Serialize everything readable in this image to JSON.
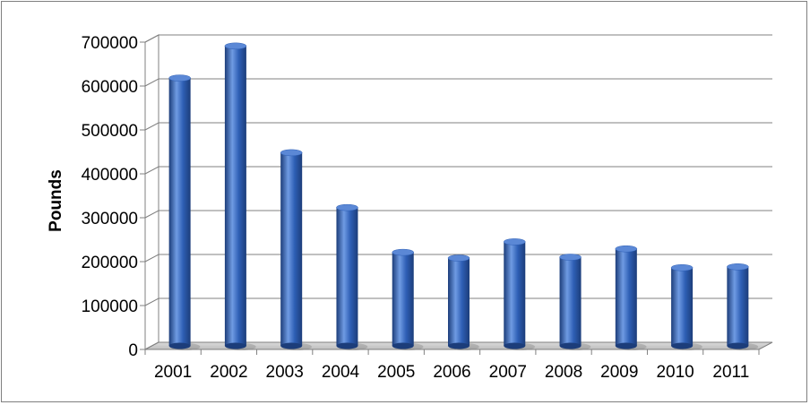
{
  "chart_data": {
    "type": "bar",
    "title": "",
    "xlabel": "",
    "ylabel": "Pounds",
    "categories": [
      "2001",
      "2002",
      "2003",
      "2004",
      "2005",
      "2006",
      "2007",
      "2008",
      "2009",
      "2010",
      "2011"
    ],
    "series": [
      {
        "values": [
          610000,
          683000,
          440000,
          315000,
          213000,
          200000,
          237000,
          202000,
          221000,
          178000,
          180000
        ]
      }
    ],
    "ylim": [
      0,
      700000
    ],
    "yticks": [
      "0",
      "100000",
      "200000",
      "300000",
      "400000",
      "500000",
      "600000",
      "700000"
    ],
    "grid": true,
    "legend": "none",
    "style_3d": true,
    "bar_color": "#2e5fb5",
    "bar_highlight": "#6f9be3",
    "bar_shadow": "#1c3d7a"
  }
}
